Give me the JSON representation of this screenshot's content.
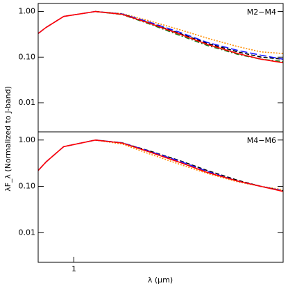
{
  "chart_data": [
    {
      "type": "line",
      "annotation": "M2−M4",
      "ylabel": "λF_λ (Normalized to J-band)",
      "log_x": true,
      "log_y": true,
      "xlim": [
        0.69,
        8.8
      ],
      "ylim": [
        0.0023,
        1.5
      ],
      "yticks": [
        {
          "value": 1,
          "label": "1.00"
        },
        {
          "value": 0.1,
          "label": "0.10"
        },
        {
          "value": 0.01,
          "label": "0.01"
        }
      ],
      "x": [
        0.69,
        0.75,
        0.9,
        1.25,
        1.65,
        2.2,
        3.0,
        4.0,
        5.5,
        7.0,
        8.8
      ],
      "series": [
        {
          "color": "#ff8c00",
          "dash": "dotted",
          "values": [
            null,
            null,
            null,
            1.0,
            0.9,
            0.62,
            0.4,
            0.26,
            0.17,
            0.13,
            0.12
          ]
        },
        {
          "color": "#000000",
          "dash": "dashed",
          "values": [
            null,
            null,
            null,
            1.0,
            0.88,
            0.56,
            0.33,
            0.2,
            0.13,
            0.1,
            0.09
          ]
        },
        {
          "color": "#1a1aff",
          "dash": "longdash",
          "values": [
            0.33,
            0.45,
            0.78,
            1.0,
            0.88,
            0.58,
            0.35,
            0.21,
            0.14,
            0.11,
            0.09
          ]
        },
        {
          "color": "#1a7a1a",
          "dash": "dashdot",
          "values": [
            null,
            null,
            null,
            1.0,
            0.86,
            0.53,
            0.3,
            0.18,
            0.115,
            0.09,
            0.08
          ]
        },
        {
          "color": "#ff0000",
          "dash": "solid",
          "values": [
            0.33,
            0.45,
            0.78,
            1.0,
            0.87,
            0.55,
            0.32,
            0.19,
            0.12,
            0.09,
            0.075
          ]
        }
      ]
    },
    {
      "type": "line",
      "annotation": "M4−M6",
      "xlabel": "λ (μm)",
      "log_x": true,
      "log_y": true,
      "xlim": [
        0.69,
        8.8
      ],
      "ylim": [
        0.0023,
        1.5
      ],
      "xticks": [
        1
      ],
      "yticks": [
        {
          "value": 1,
          "label": "1.00"
        },
        {
          "value": 0.1,
          "label": "0.10"
        },
        {
          "value": 0.01,
          "label": "0.01"
        }
      ],
      "x": [
        0.69,
        0.75,
        0.9,
        1.25,
        1.65,
        2.2,
        3.0,
        4.0,
        5.5,
        7.0,
        8.8
      ],
      "series": [
        {
          "color": "#ff8c00",
          "dash": "dotted",
          "values": [
            null,
            null,
            null,
            1.0,
            0.82,
            0.5,
            0.3,
            0.19,
            0.125,
            0.1,
            0.085
          ]
        },
        {
          "color": "#000000",
          "dash": "dashed",
          "values": [
            null,
            null,
            null,
            1.0,
            0.87,
            0.58,
            0.36,
            0.22,
            0.135,
            0.1,
            0.08
          ]
        },
        {
          "color": "#1a1aff",
          "dash": "longdash",
          "values": [
            0.22,
            0.34,
            0.72,
            1.0,
            0.87,
            0.57,
            0.35,
            0.21,
            0.13,
            0.1,
            0.08
          ]
        },
        {
          "color": "#ff0000",
          "dash": "solid",
          "values": [
            0.22,
            0.34,
            0.72,
            1.0,
            0.86,
            0.55,
            0.33,
            0.2,
            0.13,
            0.1,
            0.078
          ]
        }
      ]
    }
  ]
}
